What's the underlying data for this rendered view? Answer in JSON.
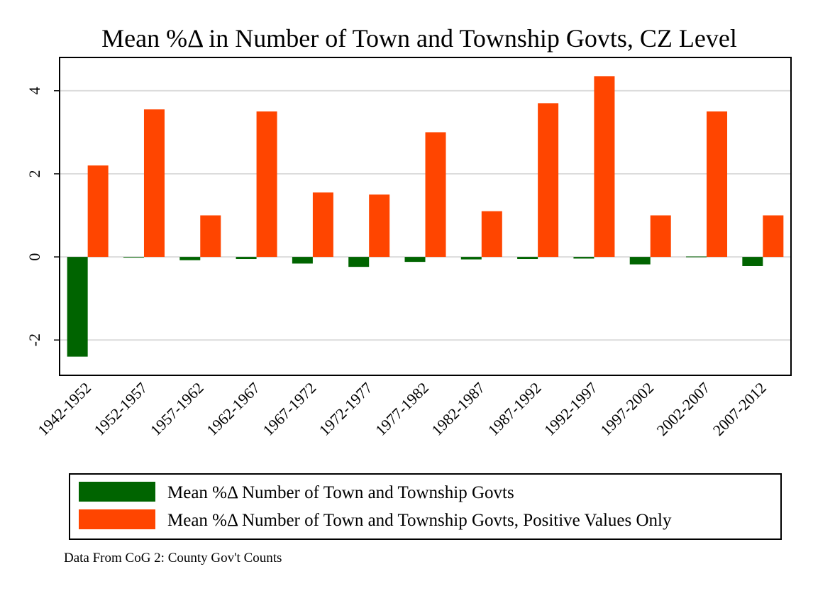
{
  "chart_data": {
    "type": "bar",
    "title": "Mean %Δ in Number of Town and Township Govts, CZ Level",
    "xlabel": "",
    "ylabel": "",
    "categories": [
      "1942-1952",
      "1952-1957",
      "1957-1962",
      "1962-1967",
      "1967-1972",
      "1972-1977",
      "1977-1982",
      "1982-1987",
      "1987-1992",
      "1992-1997",
      "1997-2002",
      "2002-2007",
      "2007-2012"
    ],
    "series": [
      {
        "name": "Mean %Δ Number of Town and Township Govts",
        "color": "#006400",
        "values": [
          -2.4,
          -0.01,
          -0.08,
          -0.05,
          -0.16,
          -0.24,
          -0.12,
          -0.06,
          -0.05,
          -0.04,
          -0.18,
          0.01,
          -0.22
        ]
      },
      {
        "name": "Mean %Δ Number of Town and Township Govts, Positive Values Only",
        "color": "#ff4500",
        "values": [
          2.2,
          3.55,
          1.0,
          3.5,
          1.55,
          1.5,
          3.0,
          1.1,
          3.7,
          4.35,
          1.0,
          3.5,
          1.0
        ]
      }
    ],
    "ylim": [
      -2.85,
      4.8
    ],
    "yticks": [
      -2,
      0,
      2,
      4
    ],
    "grid": true,
    "legend_position": "bottom"
  },
  "note": "Data From CoG 2: County Gov't Counts"
}
